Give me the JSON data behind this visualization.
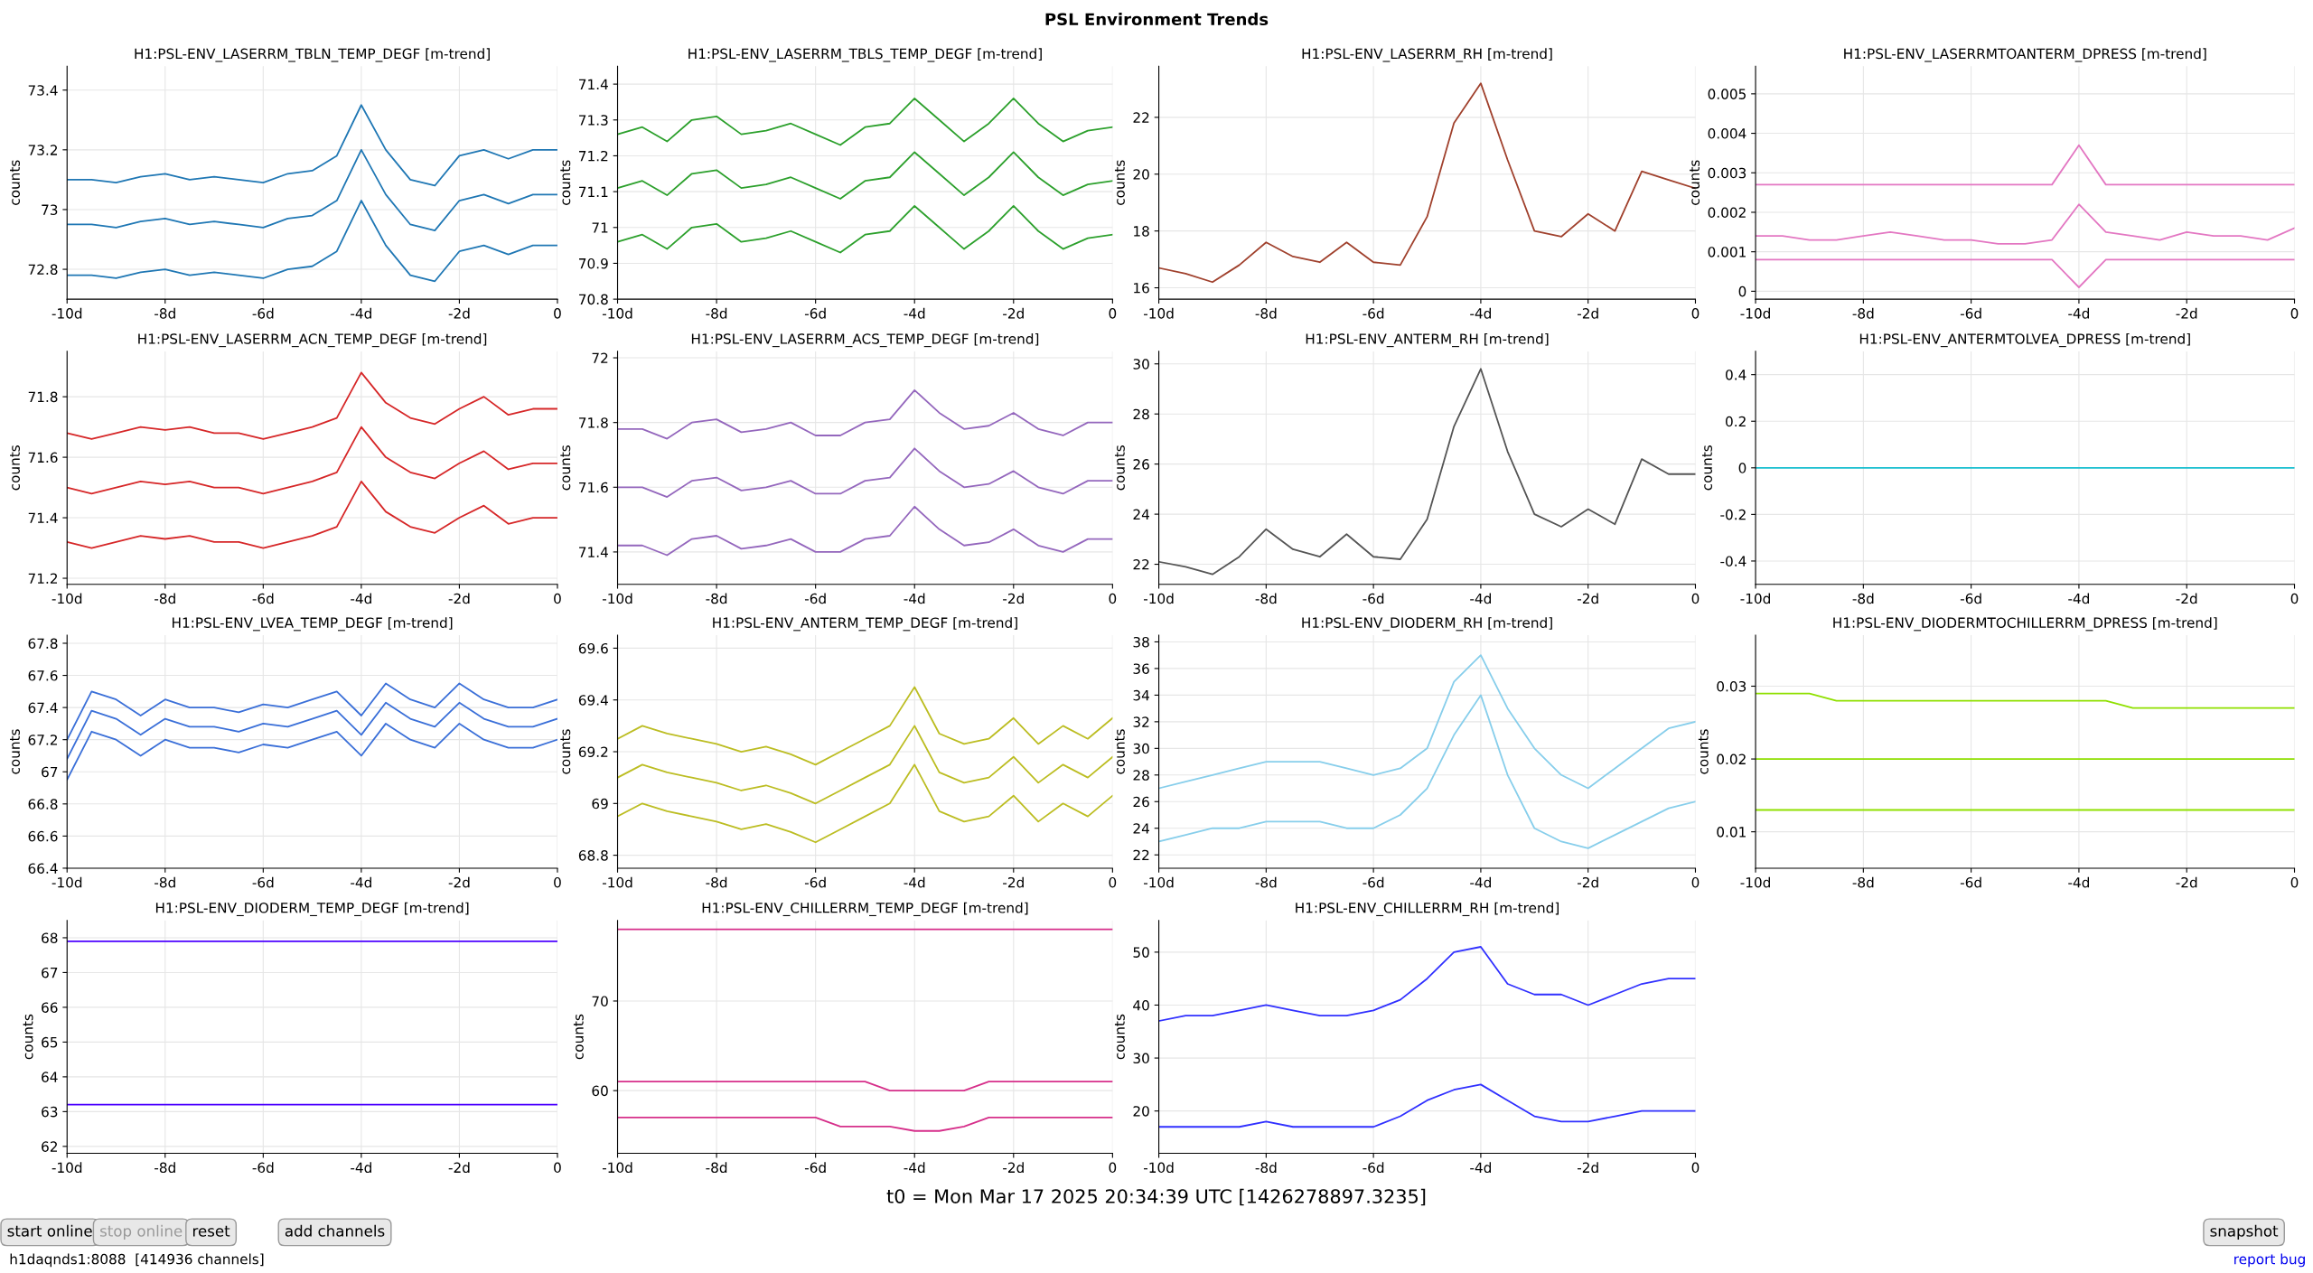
{
  "chart_data": [
    {
      "type": "line",
      "title": "H1:PSL-ENV_LASERRM_TBLN_TEMP_DEGF [m-trend]",
      "ylabel": "counts",
      "grid": true,
      "xlim": [
        -10,
        0
      ],
      "xticks": [
        {
          "value": -10,
          "label": "-10d"
        },
        {
          "value": -8,
          "label": "-8d"
        },
        {
          "value": -6,
          "label": "-6d"
        },
        {
          "value": -4,
          "label": "-4d"
        },
        {
          "value": -2,
          "label": "-2d"
        },
        {
          "value": 0,
          "label": "0"
        }
      ],
      "ylim": [
        72.7,
        73.48
      ],
      "yticks": [
        72.8,
        73,
        73.2,
        73.4
      ],
      "x": [
        -10,
        -9.5,
        -9,
        -8.5,
        -8,
        -7.5,
        -7,
        -6.5,
        -6,
        -5.5,
        -5,
        -4.5,
        -4,
        -3.5,
        -3,
        -2.5,
        -2,
        -1.5,
        -1,
        -0.5,
        0
      ],
      "series": [
        {
          "color": "#1f77b4",
          "values": [
            73.1,
            73.1,
            73.09,
            73.11,
            73.12,
            73.1,
            73.11,
            73.1,
            73.09,
            73.12,
            73.13,
            73.18,
            73.35,
            73.2,
            73.1,
            73.08,
            73.18,
            73.2,
            73.17,
            73.2,
            73.2
          ]
        },
        {
          "color": "#1f77b4",
          "values": [
            72.95,
            72.95,
            72.94,
            72.96,
            72.97,
            72.95,
            72.96,
            72.95,
            72.94,
            72.97,
            72.98,
            73.03,
            73.2,
            73.05,
            72.95,
            72.93,
            73.03,
            73.05,
            73.02,
            73.05,
            73.05
          ]
        },
        {
          "color": "#1f77b4",
          "values": [
            72.78,
            72.78,
            72.77,
            72.79,
            72.8,
            72.78,
            72.79,
            72.78,
            72.77,
            72.8,
            72.81,
            72.86,
            73.03,
            72.88,
            72.78,
            72.76,
            72.86,
            72.88,
            72.85,
            72.88,
            72.88
          ]
        }
      ]
    },
    {
      "type": "line",
      "title": "H1:PSL-ENV_LASERRM_TBLS_TEMP_DEGF [m-trend]",
      "ylabel": "counts",
      "grid": true,
      "xlim": [
        -10,
        0
      ],
      "xticks": [
        {
          "value": -10,
          "label": "-10d"
        },
        {
          "value": -8,
          "label": "-8d"
        },
        {
          "value": -6,
          "label": "-6d"
        },
        {
          "value": -4,
          "label": "-4d"
        },
        {
          "value": -2,
          "label": "-2d"
        },
        {
          "value": 0,
          "label": "0"
        }
      ],
      "ylim": [
        70.8,
        71.45
      ],
      "yticks": [
        70.8,
        70.9,
        71,
        71.1,
        71.2,
        71.3,
        71.4
      ],
      "x": [
        -10,
        -9.5,
        -9,
        -8.5,
        -8,
        -7.5,
        -7,
        -6.5,
        -6,
        -5.5,
        -5,
        -4.5,
        -4,
        -3.5,
        -3,
        -2.5,
        -2,
        -1.5,
        -1,
        -0.5,
        0
      ],
      "series": [
        {
          "color": "#2ca02c",
          "values": [
            71.26,
            71.28,
            71.24,
            71.3,
            71.31,
            71.26,
            71.27,
            71.29,
            71.26,
            71.23,
            71.28,
            71.29,
            71.36,
            71.3,
            71.24,
            71.29,
            71.36,
            71.29,
            71.24,
            71.27,
            71.28
          ]
        },
        {
          "color": "#2ca02c",
          "values": [
            71.11,
            71.13,
            71.09,
            71.15,
            71.16,
            71.11,
            71.12,
            71.14,
            71.11,
            71.08,
            71.13,
            71.14,
            71.21,
            71.15,
            71.09,
            71.14,
            71.21,
            71.14,
            71.09,
            71.12,
            71.13
          ]
        },
        {
          "color": "#2ca02c",
          "values": [
            70.96,
            70.98,
            70.94,
            71,
            71.01,
            70.96,
            70.97,
            70.99,
            70.96,
            70.93,
            70.98,
            70.99,
            71.06,
            71,
            70.94,
            70.99,
            71.06,
            70.99,
            70.94,
            70.97,
            70.98
          ]
        }
      ]
    },
    {
      "type": "line",
      "title": "H1:PSL-ENV_LASERRM_RH [m-trend]",
      "ylabel": "counts",
      "grid": true,
      "xlim": [
        -10,
        0
      ],
      "xticks": [
        {
          "value": -10,
          "label": "-10d"
        },
        {
          "value": -8,
          "label": "-8d"
        },
        {
          "value": -6,
          "label": "-6d"
        },
        {
          "value": -4,
          "label": "-4d"
        },
        {
          "value": -2,
          "label": "-2d"
        },
        {
          "value": 0,
          "label": "0"
        }
      ],
      "ylim": [
        15.6,
        23.8
      ],
      "yticks": [
        16,
        18,
        20,
        22
      ],
      "x": [
        -10,
        -9.5,
        -9,
        -8.5,
        -8,
        -7.5,
        -7,
        -6.5,
        -6,
        -5.5,
        -5,
        -4.5,
        -4,
        -3.5,
        -3,
        -2.5,
        -2,
        -1.5,
        -1,
        -0.5,
        0
      ],
      "series": [
        {
          "color": "#a0412d",
          "values": [
            16.7,
            16.5,
            16.2,
            16.8,
            17.6,
            17.1,
            16.9,
            17.6,
            16.9,
            16.8,
            18.5,
            21.8,
            23.2,
            20.5,
            18.0,
            17.8,
            18.6,
            18.0,
            20.1,
            19.8,
            19.5
          ]
        }
      ]
    },
    {
      "type": "line",
      "title": "H1:PSL-ENV_LASERRMTOANTERM_DPRESS [m-trend]",
      "ylabel": "counts",
      "grid": true,
      "xlim": [
        -10,
        0
      ],
      "xticks": [
        {
          "value": -10,
          "label": "-10d"
        },
        {
          "value": -8,
          "label": "-8d"
        },
        {
          "value": -6,
          "label": "-6d"
        },
        {
          "value": -4,
          "label": "-4d"
        },
        {
          "value": -2,
          "label": "-2d"
        },
        {
          "value": 0,
          "label": "0"
        }
      ],
      "ylim": [
        -0.0002,
        0.0057
      ],
      "yticks": [
        0,
        0.001,
        0.002,
        0.003,
        0.004,
        0.005
      ],
      "x": [
        -10,
        -9.5,
        -9,
        -8.5,
        -8,
        -7.5,
        -7,
        -6.5,
        -6,
        -5.5,
        -5,
        -4.5,
        -4,
        -3.5,
        -3,
        -2.5,
        -2,
        -1.5,
        -1,
        -0.5,
        0
      ],
      "series": [
        {
          "color": "#e377c2",
          "values": [
            0.0027,
            0.0027,
            0.0027,
            0.0027,
            0.0027,
            0.0027,
            0.0027,
            0.0027,
            0.0027,
            0.0027,
            0.0027,
            0.0027,
            0.0037,
            0.0027,
            0.0027,
            0.0027,
            0.0027,
            0.0027,
            0.0027,
            0.0027,
            0.0027
          ]
        },
        {
          "color": "#e377c2",
          "values": [
            0.0014,
            0.0014,
            0.0013,
            0.0013,
            0.0014,
            0.0015,
            0.0014,
            0.0013,
            0.0013,
            0.0012,
            0.0012,
            0.0013,
            0.0022,
            0.0015,
            0.0014,
            0.0013,
            0.0015,
            0.0014,
            0.0014,
            0.0013,
            0.0016
          ]
        },
        {
          "color": "#e377c2",
          "values": [
            0.0008,
            0.0008,
            0.0008,
            0.0008,
            0.0008,
            0.0008,
            0.0008,
            0.0008,
            0.0008,
            0.0008,
            0.0008,
            0.0008,
            0.0001,
            0.0008,
            0.0008,
            0.0008,
            0.0008,
            0.0008,
            0.0008,
            0.0008,
            0.0008
          ]
        }
      ]
    },
    {
      "type": "line",
      "title": "H1:PSL-ENV_LASERRM_ACN_TEMP_DEGF [m-trend]",
      "ylabel": "counts",
      "grid": true,
      "xlim": [
        -10,
        0
      ],
      "xticks": [
        {
          "value": -10,
          "label": "-10d"
        },
        {
          "value": -8,
          "label": "-8d"
        },
        {
          "value": -6,
          "label": "-6d"
        },
        {
          "value": -4,
          "label": "-4d"
        },
        {
          "value": -2,
          "label": "-2d"
        },
        {
          "value": 0,
          "label": "0"
        }
      ],
      "ylim": [
        71.18,
        71.95
      ],
      "yticks": [
        71.2,
        71.4,
        71.6,
        71.8
      ],
      "x": [
        -10,
        -9.5,
        -9,
        -8.5,
        -8,
        -7.5,
        -7,
        -6.5,
        -6,
        -5.5,
        -5,
        -4.5,
        -4,
        -3.5,
        -3,
        -2.5,
        -2,
        -1.5,
        -1,
        -0.5,
        0
      ],
      "series": [
        {
          "color": "#d62728",
          "values": [
            71.68,
            71.66,
            71.68,
            71.7,
            71.69,
            71.7,
            71.68,
            71.68,
            71.66,
            71.68,
            71.7,
            71.73,
            71.88,
            71.78,
            71.73,
            71.71,
            71.76,
            71.8,
            71.74,
            71.76,
            71.76
          ]
        },
        {
          "color": "#d62728",
          "values": [
            71.5,
            71.48,
            71.5,
            71.52,
            71.51,
            71.52,
            71.5,
            71.5,
            71.48,
            71.5,
            71.52,
            71.55,
            71.7,
            71.6,
            71.55,
            71.53,
            71.58,
            71.62,
            71.56,
            71.58,
            71.58
          ]
        },
        {
          "color": "#d62728",
          "values": [
            71.32,
            71.3,
            71.32,
            71.34,
            71.33,
            71.34,
            71.32,
            71.32,
            71.3,
            71.32,
            71.34,
            71.37,
            71.52,
            71.42,
            71.37,
            71.35,
            71.4,
            71.44,
            71.38,
            71.4,
            71.4
          ]
        }
      ]
    },
    {
      "type": "line",
      "title": "H1:PSL-ENV_LASERRM_ACS_TEMP_DEGF [m-trend]",
      "ylabel": "counts",
      "grid": true,
      "xlim": [
        -10,
        0
      ],
      "xticks": [
        {
          "value": -10,
          "label": "-10d"
        },
        {
          "value": -8,
          "label": "-8d"
        },
        {
          "value": -6,
          "label": "-6d"
        },
        {
          "value": -4,
          "label": "-4d"
        },
        {
          "value": -2,
          "label": "-2d"
        },
        {
          "value": 0,
          "label": "0"
        }
      ],
      "ylim": [
        71.3,
        72.02
      ],
      "yticks": [
        71.4,
        71.6,
        71.8,
        72
      ],
      "x": [
        -10,
        -9.5,
        -9,
        -8.5,
        -8,
        -7.5,
        -7,
        -6.5,
        -6,
        -5.5,
        -5,
        -4.5,
        -4,
        -3.5,
        -3,
        -2.5,
        -2,
        -1.5,
        -1,
        -0.5,
        0
      ],
      "series": [
        {
          "color": "#9467bd",
          "values": [
            71.78,
            71.78,
            71.75,
            71.8,
            71.81,
            71.77,
            71.78,
            71.8,
            71.76,
            71.76,
            71.8,
            71.81,
            71.9,
            71.83,
            71.78,
            71.79,
            71.83,
            71.78,
            71.76,
            71.8,
            71.8
          ]
        },
        {
          "color": "#9467bd",
          "values": [
            71.6,
            71.6,
            71.57,
            71.62,
            71.63,
            71.59,
            71.6,
            71.62,
            71.58,
            71.58,
            71.62,
            71.63,
            71.72,
            71.65,
            71.6,
            71.61,
            71.65,
            71.6,
            71.58,
            71.62,
            71.62
          ]
        },
        {
          "color": "#9467bd",
          "values": [
            71.42,
            71.42,
            71.39,
            71.44,
            71.45,
            71.41,
            71.42,
            71.44,
            71.4,
            71.4,
            71.44,
            71.45,
            71.54,
            71.47,
            71.42,
            71.43,
            71.47,
            71.42,
            71.4,
            71.44,
            71.44
          ]
        }
      ]
    },
    {
      "type": "line",
      "title": "H1:PSL-ENV_ANTERM_RH [m-trend]",
      "ylabel": "counts",
      "grid": true,
      "xlim": [
        -10,
        0
      ],
      "xticks": [
        {
          "value": -10,
          "label": "-10d"
        },
        {
          "value": -8,
          "label": "-8d"
        },
        {
          "value": -6,
          "label": "-6d"
        },
        {
          "value": -4,
          "label": "-4d"
        },
        {
          "value": -2,
          "label": "-2d"
        },
        {
          "value": 0,
          "label": "0"
        }
      ],
      "ylim": [
        21.2,
        30.5
      ],
      "yticks": [
        22,
        24,
        26,
        28,
        30
      ],
      "x": [
        -10,
        -9.5,
        -9,
        -8.5,
        -8,
        -7.5,
        -7,
        -6.5,
        -6,
        -5.5,
        -5,
        -4.5,
        -4,
        -3.5,
        -3,
        -2.5,
        -2,
        -1.5,
        -1,
        -0.5,
        0
      ],
      "series": [
        {
          "color": "#555555",
          "values": [
            22.1,
            21.9,
            21.6,
            22.3,
            23.4,
            22.6,
            22.3,
            23.2,
            22.3,
            22.2,
            23.8,
            27.5,
            29.8,
            26.5,
            24.0,
            23.5,
            24.2,
            23.6,
            26.2,
            25.6,
            25.6
          ]
        }
      ]
    },
    {
      "type": "line",
      "title": "H1:PSL-ENV_ANTERMTOLVEA_DPRESS [m-trend]",
      "ylabel": "counts",
      "grid": true,
      "xlim": [
        -10,
        0
      ],
      "xticks": [
        {
          "value": -10,
          "label": "-10d"
        },
        {
          "value": -8,
          "label": "-8d"
        },
        {
          "value": -6,
          "label": "-6d"
        },
        {
          "value": -4,
          "label": "-4d"
        },
        {
          "value": -2,
          "label": "-2d"
        },
        {
          "value": 0,
          "label": "0"
        }
      ],
      "ylim": [
        -0.5,
        0.5
      ],
      "yticks": [
        -0.4,
        -0.2,
        0,
        0.2,
        0.4
      ],
      "x": [
        -10,
        -9.5,
        -9,
        -8.5,
        -8,
        -7.5,
        -7,
        -6.5,
        -6,
        -5.5,
        -5,
        -4.5,
        -4,
        -3.5,
        -3,
        -2.5,
        -2,
        -1.5,
        -1,
        -0.5,
        0
      ],
      "series": [
        {
          "color": "#17becf",
          "values": [
            0,
            0,
            0,
            0,
            0,
            0,
            0,
            0,
            0,
            0,
            0,
            0,
            0,
            0,
            0,
            0,
            0,
            0,
            0,
            0,
            0
          ]
        }
      ]
    },
    {
      "type": "line",
      "title": "H1:PSL-ENV_LVEA_TEMP_DEGF [m-trend]",
      "ylabel": "counts",
      "grid": true,
      "xlim": [
        -10,
        0
      ],
      "xticks": [
        {
          "value": -10,
          "label": "-10d"
        },
        {
          "value": -8,
          "label": "-8d"
        },
        {
          "value": -6,
          "label": "-6d"
        },
        {
          "value": -4,
          "label": "-4d"
        },
        {
          "value": -2,
          "label": "-2d"
        },
        {
          "value": 0,
          "label": "0"
        }
      ],
      "ylim": [
        66.4,
        67.85
      ],
      "yticks": [
        66.4,
        66.6,
        66.8,
        67,
        67.2,
        67.4,
        67.6,
        67.8
      ],
      "x": [
        -10,
        -9.5,
        -9,
        -8.5,
        -8,
        -7.5,
        -7,
        -6.5,
        -6,
        -5.5,
        -5,
        -4.5,
        -4,
        -3.5,
        -3,
        -2.5,
        -2,
        -1.5,
        -1,
        -0.5,
        0
      ],
      "series": [
        {
          "color": "#3a6fd8",
          "values": [
            67.2,
            67.5,
            67.45,
            67.35,
            67.45,
            67.4,
            67.4,
            67.37,
            67.42,
            67.4,
            67.45,
            67.5,
            67.35,
            67.55,
            67.45,
            67.4,
            67.55,
            67.45,
            67.4,
            67.4,
            67.45
          ]
        },
        {
          "color": "#3a6fd8",
          "values": [
            67.08,
            67.38,
            67.33,
            67.23,
            67.33,
            67.28,
            67.28,
            67.25,
            67.3,
            67.28,
            67.33,
            67.38,
            67.23,
            67.43,
            67.33,
            67.28,
            67.43,
            67.33,
            67.28,
            67.28,
            67.33
          ]
        },
        {
          "color": "#3a6fd8",
          "values": [
            66.95,
            67.25,
            67.2,
            67.1,
            67.2,
            67.15,
            67.15,
            67.12,
            67.17,
            67.15,
            67.2,
            67.25,
            67.1,
            67.3,
            67.2,
            67.15,
            67.3,
            67.2,
            67.15,
            67.15,
            67.2
          ]
        }
      ]
    },
    {
      "type": "line",
      "title": "H1:PSL-ENV_ANTERM_TEMP_DEGF [m-trend]",
      "ylabel": "counts",
      "grid": true,
      "xlim": [
        -10,
        0
      ],
      "xticks": [
        {
          "value": -10,
          "label": "-10d"
        },
        {
          "value": -8,
          "label": "-8d"
        },
        {
          "value": -6,
          "label": "-6d"
        },
        {
          "value": -4,
          "label": "-4d"
        },
        {
          "value": -2,
          "label": "-2d"
        },
        {
          "value": 0,
          "label": "0"
        }
      ],
      "ylim": [
        68.75,
        69.65
      ],
      "yticks": [
        68.8,
        69,
        69.2,
        69.4,
        69.6
      ],
      "x": [
        -10,
        -9.5,
        -9,
        -8.5,
        -8,
        -7.5,
        -7,
        -6.5,
        -6,
        -5.5,
        -5,
        -4.5,
        -4,
        -3.5,
        -3,
        -2.5,
        -2,
        -1.5,
        -1,
        -0.5,
        0
      ],
      "series": [
        {
          "color": "#bcbd22",
          "values": [
            69.25,
            69.3,
            69.27,
            69.25,
            69.23,
            69.2,
            69.22,
            69.19,
            69.15,
            69.2,
            69.25,
            69.3,
            69.45,
            69.27,
            69.23,
            69.25,
            69.33,
            69.23,
            69.3,
            69.25,
            69.33
          ]
        },
        {
          "color": "#bcbd22",
          "values": [
            69.1,
            69.15,
            69.12,
            69.1,
            69.08,
            69.05,
            69.07,
            69.04,
            69,
            69.05,
            69.1,
            69.15,
            69.3,
            69.12,
            69.08,
            69.1,
            69.18,
            69.08,
            69.15,
            69.1,
            69.18
          ]
        },
        {
          "color": "#bcbd22",
          "values": [
            68.95,
            69,
            68.97,
            68.95,
            68.93,
            68.9,
            68.92,
            68.89,
            68.85,
            68.9,
            68.95,
            69,
            69.15,
            68.97,
            68.93,
            68.95,
            69.03,
            68.93,
            69,
            68.95,
            69.03
          ]
        }
      ]
    },
    {
      "type": "line",
      "title": "H1:PSL-ENV_DIODERM_RH [m-trend]",
      "ylabel": "counts",
      "grid": true,
      "xlim": [
        -10,
        0
      ],
      "xticks": [
        {
          "value": -10,
          "label": "-10d"
        },
        {
          "value": -8,
          "label": "-8d"
        },
        {
          "value": -6,
          "label": "-6d"
        },
        {
          "value": -4,
          "label": "-4d"
        },
        {
          "value": -2,
          "label": "-2d"
        },
        {
          "value": 0,
          "label": "0"
        }
      ],
      "ylim": [
        21,
        38.5
      ],
      "yticks": [
        22,
        24,
        26,
        28,
        30,
        32,
        34,
        36,
        38
      ],
      "x": [
        -10,
        -9.5,
        -9,
        -8.5,
        -8,
        -7.5,
        -7,
        -6.5,
        -6,
        -5.5,
        -5,
        -4.5,
        -4,
        -3.5,
        -3,
        -2.5,
        -2,
        -1.5,
        -1,
        -0.5,
        0
      ],
      "series": [
        {
          "color": "#87ceeb",
          "values": [
            27,
            27.5,
            28,
            28.5,
            29,
            29,
            29,
            28.5,
            28,
            28.5,
            30,
            35,
            37,
            33,
            30,
            28,
            27,
            28.5,
            30,
            31.5,
            32
          ]
        },
        {
          "color": "#87ceeb",
          "values": [
            23,
            23.5,
            24,
            24,
            24.5,
            24.5,
            24.5,
            24,
            24,
            25,
            27,
            31,
            34,
            28,
            24,
            23,
            22.5,
            23.5,
            24.5,
            25.5,
            26
          ]
        }
      ]
    },
    {
      "type": "line",
      "title": "H1:PSL-ENV_DIODERMTOCHILLERRM_DPRESS [m-trend]",
      "ylabel": "counts",
      "grid": true,
      "xlim": [
        -10,
        0
      ],
      "xticks": [
        {
          "value": -10,
          "label": "-10d"
        },
        {
          "value": -8,
          "label": "-8d"
        },
        {
          "value": -6,
          "label": "-6d"
        },
        {
          "value": -4,
          "label": "-4d"
        },
        {
          "value": -2,
          "label": "-2d"
        },
        {
          "value": 0,
          "label": "0"
        }
      ],
      "ylim": [
        0.005,
        0.037
      ],
      "yticks": [
        0.01,
        0.02,
        0.03
      ],
      "x": [
        -10,
        -9.5,
        -9,
        -8.5,
        -8,
        -7.5,
        -7,
        -6.5,
        -6,
        -5.5,
        -5,
        -4.5,
        -4,
        -3.5,
        -3,
        -2.5,
        -2,
        -1.5,
        -1,
        -0.5,
        0
      ],
      "series": [
        {
          "color": "#8fe000",
          "values": [
            0.029,
            0.029,
            0.029,
            0.028,
            0.028,
            0.028,
            0.028,
            0.028,
            0.028,
            0.028,
            0.028,
            0.028,
            0.028,
            0.028,
            0.027,
            0.027,
            0.027,
            0.027,
            0.027,
            0.027,
            0.027
          ]
        },
        {
          "color": "#8fe000",
          "values": [
            0.02,
            0.02,
            0.02,
            0.02,
            0.02,
            0.02,
            0.02,
            0.02,
            0.02,
            0.02,
            0.02,
            0.02,
            0.02,
            0.02,
            0.02,
            0.02,
            0.02,
            0.02,
            0.02,
            0.02,
            0.02
          ]
        },
        {
          "color": "#8fe000",
          "values": [
            0.013,
            0.013,
            0.013,
            0.013,
            0.013,
            0.013,
            0.013,
            0.013,
            0.013,
            0.013,
            0.013,
            0.013,
            0.013,
            0.013,
            0.013,
            0.013,
            0.013,
            0.013,
            0.013,
            0.013,
            0.013
          ]
        }
      ]
    },
    {
      "type": "line",
      "title": "H1:PSL-ENV_DIODERM_TEMP_DEGF [m-trend]",
      "ylabel": "counts",
      "grid": true,
      "xlim": [
        -10,
        0
      ],
      "xticks": [
        {
          "value": -10,
          "label": "-10d"
        },
        {
          "value": -8,
          "label": "-8d"
        },
        {
          "value": -6,
          "label": "-6d"
        },
        {
          "value": -4,
          "label": "-4d"
        },
        {
          "value": -2,
          "label": "-2d"
        },
        {
          "value": 0,
          "label": "0"
        }
      ],
      "ylim": [
        61.8,
        68.5
      ],
      "yticks": [
        62,
        63,
        64,
        65,
        66,
        67,
        68
      ],
      "x": [
        -10,
        -9.5,
        -9,
        -8.5,
        -8,
        -7.5,
        -7,
        -6.5,
        -6,
        -5.5,
        -5,
        -4.5,
        -4,
        -3.5,
        -3,
        -2.5,
        -2,
        -1.5,
        -1,
        -0.5,
        0
      ],
      "series": [
        {
          "color": "#4b00ff",
          "values": [
            67.9,
            67.9,
            67.9,
            67.9,
            67.9,
            67.9,
            67.9,
            67.9,
            67.9,
            67.9,
            67.9,
            67.9,
            67.9,
            67.9,
            67.9,
            67.9,
            67.9,
            67.9,
            67.9,
            67.9,
            67.9
          ]
        },
        {
          "color": "#4b00ff",
          "values": [
            63.2,
            63.2,
            63.2,
            63.2,
            63.2,
            63.2,
            63.2,
            63.2,
            63.2,
            63.2,
            63.2,
            63.2,
            63.2,
            63.2,
            63.2,
            63.2,
            63.2,
            63.2,
            63.2,
            63.2,
            63.2
          ]
        }
      ]
    },
    {
      "type": "line",
      "title": "H1:PSL-ENV_CHILLERRM_TEMP_DEGF [m-trend]",
      "ylabel": "counts",
      "grid": true,
      "xlim": [
        -10,
        0
      ],
      "xticks": [
        {
          "value": -10,
          "label": "-10d"
        },
        {
          "value": -8,
          "label": "-8d"
        },
        {
          "value": -6,
          "label": "-6d"
        },
        {
          "value": -4,
          "label": "-4d"
        },
        {
          "value": -2,
          "label": "-2d"
        },
        {
          "value": 0,
          "label": "0"
        }
      ],
      "ylim": [
        53,
        79
      ],
      "yticks": [
        60,
        70
      ],
      "x": [
        -10,
        -9.5,
        -9,
        -8.5,
        -8,
        -7.5,
        -7,
        -6.5,
        -6,
        -5.5,
        -5,
        -4.5,
        -4,
        -3.5,
        -3,
        -2.5,
        -2,
        -1.5,
        -1,
        -0.5,
        0
      ],
      "series": [
        {
          "color": "#d62f8a",
          "values": [
            78,
            78,
            78,
            78,
            78,
            78,
            78,
            78,
            78,
            78,
            78,
            78,
            78,
            78,
            78,
            78,
            78,
            78,
            78,
            78,
            78
          ]
        },
        {
          "color": "#d62f8a",
          "values": [
            61,
            61,
            61,
            61,
            61,
            61,
            61,
            61,
            61,
            61,
            61,
            60,
            60,
            60,
            60,
            61,
            61,
            61,
            61,
            61,
            61
          ]
        },
        {
          "color": "#d62f8a",
          "values": [
            57,
            57,
            57,
            57,
            57,
            57,
            57,
            57,
            57,
            56,
            56,
            56,
            55.5,
            55.5,
            56,
            57,
            57,
            57,
            57,
            57,
            57
          ]
        }
      ]
    },
    {
      "type": "line",
      "title": "H1:PSL-ENV_CHILLERRM_RH [m-trend]",
      "ylabel": "counts",
      "grid": true,
      "xlim": [
        -10,
        0
      ],
      "xticks": [
        {
          "value": -10,
          "label": "-10d"
        },
        {
          "value": -8,
          "label": "-8d"
        },
        {
          "value": -6,
          "label": "-6d"
        },
        {
          "value": -4,
          "label": "-4d"
        },
        {
          "value": -2,
          "label": "-2d"
        },
        {
          "value": 0,
          "label": "0"
        }
      ],
      "ylim": [
        12,
        56
      ],
      "yticks": [
        20,
        30,
        40,
        50
      ],
      "x": [
        -10,
        -9.5,
        -9,
        -8.5,
        -8,
        -7.5,
        -7,
        -6.5,
        -6,
        -5.5,
        -5,
        -4.5,
        -4,
        -3.5,
        -3,
        -2.5,
        -2,
        -1.5,
        -1,
        -0.5,
        0
      ],
      "series": [
        {
          "color": "#3030ff",
          "values": [
            37,
            38,
            38,
            39,
            40,
            39,
            38,
            38,
            39,
            41,
            45,
            50,
            51,
            44,
            42,
            42,
            40,
            42,
            44,
            45,
            45
          ]
        },
        {
          "color": "#3030ff",
          "values": [
            17,
            17,
            17,
            17,
            18,
            17,
            17,
            17,
            17,
            19,
            22,
            24,
            25,
            22,
            19,
            18,
            18,
            19,
            20,
            20,
            20
          ]
        }
      ]
    },
    {
      "type": "other",
      "title": "PSL Environment Trends",
      "annotations": [
        "t0 = Mon Mar 17 2025 20:34:39 UTC [1426278897.3235]",
        "start online",
        "stop online",
        "reset",
        "add channels",
        "snapshot",
        "h1daqnds1:8088  [414936 channels]",
        "report bug"
      ]
    }
  ]
}
